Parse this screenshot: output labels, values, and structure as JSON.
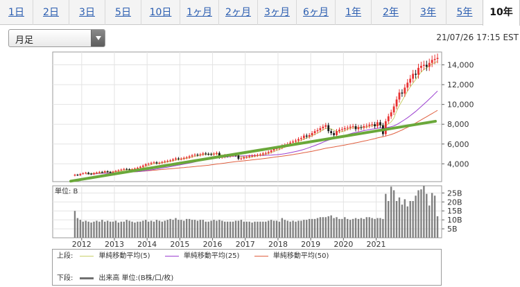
{
  "tabs": [
    {
      "label": "1日"
    },
    {
      "label": "2日"
    },
    {
      "label": "3日"
    },
    {
      "label": "5日"
    },
    {
      "label": "10日"
    },
    {
      "label": "1ヶ月"
    },
    {
      "label": "2ヶ月"
    },
    {
      "label": "3ヶ月"
    },
    {
      "label": "6ヶ月"
    },
    {
      "label": "1年"
    },
    {
      "label": "2年"
    },
    {
      "label": "3年"
    },
    {
      "label": "5年"
    },
    {
      "label": "10年"
    }
  ],
  "active_tab": "10年",
  "interval_select": {
    "value": "月足"
  },
  "timestamp": "21/07/26 17:15 EST",
  "volume_unit_label": "単位: B",
  "legend": {
    "upper": {
      "label": "上段:",
      "items": [
        {
          "label": "単純移動平均(5)",
          "color": "#c8d06a"
        },
        {
          "label": "単純移動平均(25)",
          "color": "#9b3fd0"
        },
        {
          "label": "単純移動平均(50)",
          "color": "#e06040"
        }
      ]
    },
    "lower": {
      "label": "下段:",
      "items": [
        {
          "label": "出来高 単位:(B株/口/枚)",
          "color": "#707070"
        }
      ]
    }
  },
  "colors": {
    "up": "#e83030",
    "down": "#1a1a1a",
    "trendline": "#6aa83a",
    "volume": "#808080"
  },
  "chart_data": [
    {
      "type": "candlestick",
      "interval": "monthly",
      "y_ticks": [
        "4,000",
        "6,000",
        "8,000",
        "10,000",
        "12,000",
        "14,000"
      ],
      "ylim": [
        2200,
        15300
      ],
      "x_ticks": [
        "2012",
        "2013",
        "2014",
        "2015",
        "2016",
        "2017",
        "2018",
        "2019",
        "2020",
        "2021"
      ],
      "close_series": [
        2900,
        2850,
        2980,
        3050,
        3100,
        3000,
        2950,
        3060,
        3120,
        3180,
        3150,
        3250,
        3180,
        3120,
        3200,
        3280,
        3350,
        3420,
        3480,
        3450,
        3380,
        3450,
        3520,
        3600,
        3700,
        3820,
        3950,
        4000,
        4100,
        4150,
        4050,
        4100,
        4180,
        4250,
        4300,
        4350,
        4450,
        4550,
        4480,
        4520,
        4600,
        4650,
        4750,
        4850,
        4920,
        4880,
        4950,
        5050,
        5000,
        4980,
        4950,
        5020,
        5100,
        4650,
        4700,
        4850,
        4780,
        4850,
        4900,
        4850,
        4500,
        4550,
        4650,
        4700,
        4780,
        4820,
        4850,
        4900,
        4950,
        5050,
        5100,
        5200,
        5350,
        5500,
        5550,
        5650,
        5800,
        5900,
        6000,
        6150,
        6250,
        6350,
        6500,
        6600,
        6850,
        6750,
        6900,
        7100,
        7300,
        7400,
        7600,
        7750,
        7900,
        7300,
        7100,
        6900,
        7300,
        7450,
        7500,
        7600,
        7650,
        7750,
        7800,
        7500,
        7700,
        7650,
        7800,
        7850,
        7950,
        8000,
        7800,
        8200,
        7900,
        7000,
        8300,
        8800,
        9200,
        9800,
        10500,
        11200,
        11100,
        11700,
        12200,
        12600,
        13100,
        13000,
        13700,
        13900,
        14000,
        13800,
        14200,
        14500,
        14600,
        14700
      ],
      "moving_averages": [
        {
          "name": "単純移動平均(5)",
          "period": 5
        },
        {
          "name": "単純移動平均(25)",
          "period": 25
        },
        {
          "name": "単純移動平均(50)",
          "period": 50
        }
      ],
      "trendline": {
        "from": 2250,
        "to": 8300
      }
    },
    {
      "type": "bar",
      "y_ticks": [
        "5B",
        "10B",
        "15B",
        "20B",
        "25B"
      ],
      "ylim": [
        0,
        29
      ],
      "volumes": [
        15,
        11,
        10,
        9,
        9.5,
        9,
        8.5,
        9,
        9.5,
        9,
        10,
        9,
        9.5,
        9,
        9,
        9.5,
        8.5,
        9,
        9,
        10,
        9.5,
        9,
        8.5,
        9,
        9,
        9.5,
        10,
        9,
        9.5,
        9,
        10,
        9.5,
        9,
        9.5,
        10,
        10.5,
        10,
        11,
        10,
        10,
        9.5,
        10.5,
        10.5,
        10,
        10,
        9.5,
        10,
        10,
        9,
        9,
        9.5,
        10,
        9.5,
        10,
        9.5,
        9,
        9,
        9,
        9,
        9.5,
        9.5,
        10,
        9,
        9,
        9,
        8.5,
        9,
        9,
        9,
        9,
        9,
        9.5,
        10,
        9.5,
        9.5,
        9,
        11,
        10,
        9.5,
        9,
        9.5,
        9,
        9.5,
        9.5,
        10,
        10,
        10.5,
        10.5,
        10.5,
        11,
        11.5,
        11.5,
        11.5,
        12,
        12.5,
        11,
        11.5,
        10.5,
        10.5,
        11.5,
        10.5,
        10,
        10.5,
        11,
        10.5,
        11,
        10.5,
        11.5,
        11.5,
        11,
        10.5,
        11,
        11,
        10.5,
        24.5,
        20.5,
        28.5,
        26.5,
        20.5,
        22.5,
        18.5,
        21.5,
        17.5,
        20.5,
        20.5,
        23.5,
        26.5,
        27,
        29,
        24.5,
        18,
        25,
        23.5,
        12
      ]
    }
  ]
}
